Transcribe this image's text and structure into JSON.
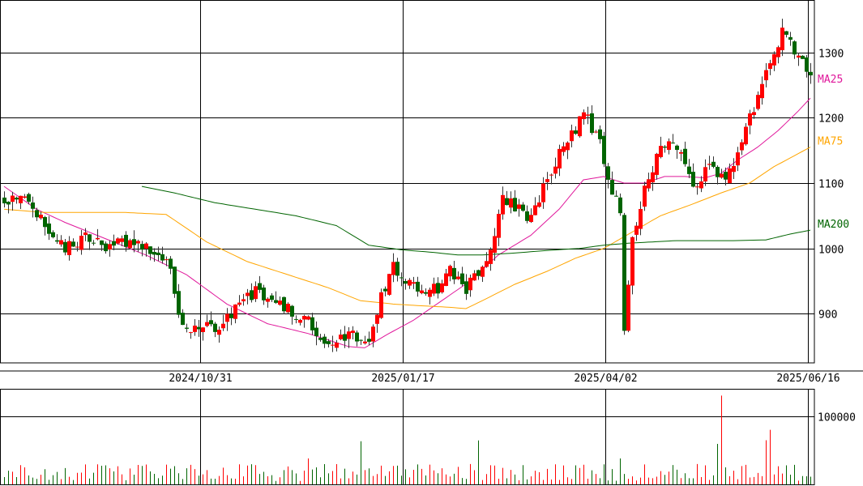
{
  "chart_data": {
    "type": "candlestick",
    "x_ticks": [
      "2024/10/31",
      "2025/01/17",
      "2025/04/02",
      "2025/06/16"
    ],
    "x_tick_index": [
      49,
      99,
      149,
      199
    ],
    "n_bars": 200,
    "price_axis": {
      "ticks": [
        900,
        1000,
        1100,
        1200,
        1300
      ],
      "ylim": [
        825,
        1380
      ]
    },
    "volume_axis": {
      "ticks": [
        100000
      ],
      "ylim": [
        0,
        140000
      ]
    },
    "grid": true,
    "colors": {
      "up": "#ff0000",
      "down": "#006400",
      "ma25": "#e0179b",
      "ma75": "#ffa500",
      "ma200": "#006400"
    },
    "ma_series": [
      {
        "name": "MA25",
        "color": "#e0179b",
        "points": [
          [
            0,
            1095
          ],
          [
            8,
            1060
          ],
          [
            15,
            1040
          ],
          [
            25,
            1015
          ],
          [
            35,
            990
          ],
          [
            45,
            960
          ],
          [
            55,
            915
          ],
          [
            65,
            885
          ],
          [
            75,
            870
          ],
          [
            85,
            850
          ],
          [
            89,
            848
          ],
          [
            95,
            870
          ],
          [
            101,
            890
          ],
          [
            108,
            920
          ],
          [
            115,
            950
          ],
          [
            122,
            990
          ],
          [
            130,
            1020
          ],
          [
            137,
            1060
          ],
          [
            143,
            1105
          ],
          [
            148,
            1110
          ],
          [
            153,
            1100
          ],
          [
            158,
            1100
          ],
          [
            163,
            1110
          ],
          [
            168,
            1110
          ],
          [
            173,
            1108
          ],
          [
            177,
            1115
          ],
          [
            181,
            1135
          ],
          [
            186,
            1155
          ],
          [
            191,
            1180
          ],
          [
            196,
            1210
          ],
          [
            199,
            1230
          ]
        ]
      },
      {
        "name": "MA75",
        "color": "#ffa500",
        "points": [
          [
            0,
            1060
          ],
          [
            10,
            1055
          ],
          [
            20,
            1055
          ],
          [
            30,
            1055
          ],
          [
            40,
            1052
          ],
          [
            50,
            1010
          ],
          [
            60,
            980
          ],
          [
            70,
            960
          ],
          [
            80,
            940
          ],
          [
            88,
            920
          ],
          [
            96,
            915
          ],
          [
            104,
            912
          ],
          [
            110,
            910
          ],
          [
            114,
            908
          ],
          [
            118,
            920
          ],
          [
            126,
            945
          ],
          [
            134,
            965
          ],
          [
            141,
            985
          ],
          [
            148,
            1000
          ],
          [
            155,
            1025
          ],
          [
            162,
            1050
          ],
          [
            170,
            1068
          ],
          [
            177,
            1085
          ],
          [
            184,
            1100
          ],
          [
            190,
            1125
          ],
          [
            196,
            1145
          ],
          [
            199,
            1155
          ]
        ]
      },
      {
        "name": "MA200",
        "color": "#006400",
        "points": [
          [
            34,
            1095
          ],
          [
            42,
            1085
          ],
          [
            52,
            1070
          ],
          [
            62,
            1060
          ],
          [
            72,
            1050
          ],
          [
            82,
            1035
          ],
          [
            90,
            1005
          ],
          [
            98,
            998
          ],
          [
            106,
            994
          ],
          [
            112,
            990
          ],
          [
            118,
            990
          ],
          [
            126,
            993
          ],
          [
            134,
            997
          ],
          [
            142,
            1000
          ],
          [
            148,
            1005
          ],
          [
            154,
            1008
          ],
          [
            160,
            1010
          ],
          [
            166,
            1012
          ],
          [
            172,
            1012
          ],
          [
            180,
            1012
          ],
          [
            188,
            1013
          ],
          [
            194,
            1022
          ],
          [
            199,
            1028
          ]
        ]
      }
    ],
    "anchors": [
      [
        0,
        1075
      ],
      [
        5,
        1075
      ],
      [
        10,
        1035
      ],
      [
        15,
        1000
      ],
      [
        20,
        1015
      ],
      [
        25,
        1000
      ],
      [
        30,
        1010
      ],
      [
        34,
        1000
      ],
      [
        38,
        990
      ],
      [
        41,
        970
      ],
      [
        43,
        905
      ],
      [
        46,
        870
      ],
      [
        49,
        880
      ],
      [
        53,
        882
      ],
      [
        58,
        910
      ],
      [
        62,
        935
      ],
      [
        66,
        920
      ],
      [
        70,
        905
      ],
      [
        74,
        897
      ],
      [
        78,
        860
      ],
      [
        82,
        862
      ],
      [
        86,
        872
      ],
      [
        89,
        848
      ],
      [
        92,
        905
      ],
      [
        96,
        975
      ],
      [
        100,
        945
      ],
      [
        103,
        930
      ],
      [
        107,
        940
      ],
      [
        110,
        970
      ],
      [
        114,
        935
      ],
      [
        117,
        965
      ],
      [
        120,
        1000
      ],
      [
        123,
        1080
      ],
      [
        126,
        1060
      ],
      [
        130,
        1050
      ],
      [
        134,
        1110
      ],
      [
        138,
        1160
      ],
      [
        141,
        1175
      ],
      [
        143,
        1210
      ],
      [
        147,
        1160
      ],
      [
        149,
        1100
      ],
      [
        152,
        1060
      ],
      [
        153,
        880
      ],
      [
        155,
        1010
      ],
      [
        158,
        1095
      ],
      [
        161,
        1140
      ],
      [
        164,
        1165
      ],
      [
        168,
        1130
      ],
      [
        171,
        1090
      ],
      [
        174,
        1130
      ],
      [
        177,
        1110
      ],
      [
        180,
        1120
      ],
      [
        183,
        1185
      ],
      [
        186,
        1230
      ],
      [
        189,
        1290
      ],
      [
        192,
        1330
      ],
      [
        195,
        1300
      ],
      [
        198,
        1280
      ],
      [
        199,
        1270
      ]
    ]
  }
}
